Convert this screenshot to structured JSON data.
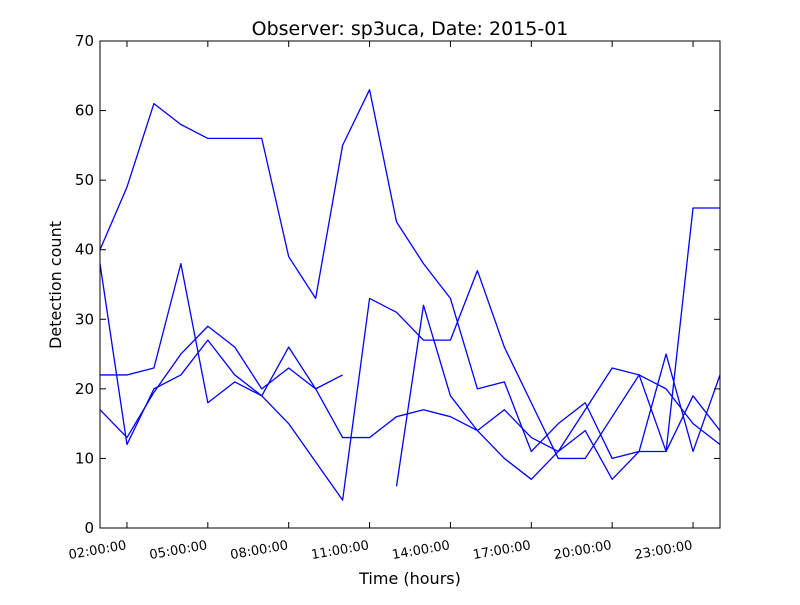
{
  "chart_data": {
    "type": "line",
    "title": "Observer: sp3uca, Date: 2015-01",
    "xlabel": "Time (hours)",
    "ylabel": "Detection count",
    "ylim": [
      0,
      70
    ],
    "xlim_hours": [
      1,
      24
    ],
    "y_ticks": [
      "0",
      "10",
      "20",
      "30",
      "40",
      "50",
      "60",
      "70"
    ],
    "x_ticks": [
      {
        "hour": 2,
        "label": "02:00:00"
      },
      {
        "hour": 5,
        "label": "05:00:00"
      },
      {
        "hour": 8,
        "label": "08:00:00"
      },
      {
        "hour": 11,
        "label": "11:00:00"
      },
      {
        "hour": 14,
        "label": "14:00:00"
      },
      {
        "hour": 17,
        "label": "17:00:00"
      },
      {
        "hour": 20,
        "label": "20:00:00"
      },
      {
        "hour": 23,
        "label": "23:00:00"
      }
    ],
    "grid": false,
    "line_color": "#0000ff",
    "series": [
      {
        "x": [
          1,
          2,
          3,
          4,
          5,
          6,
          7,
          8,
          9,
          10,
          11,
          12,
          13,
          14,
          15,
          16,
          17,
          18,
          19,
          20,
          21,
          22,
          23,
          24
        ],
        "values": [
          40,
          49,
          61,
          58,
          56,
          56,
          56,
          39,
          33,
          55,
          63,
          44,
          38,
          33,
          20,
          21,
          11,
          15,
          18,
          10,
          11,
          11,
          46,
          46
        ]
      },
      {
        "x": [
          1,
          2,
          3,
          4,
          5,
          6,
          7,
          8,
          9,
          10
        ],
        "values": [
          22,
          22,
          23,
          38,
          18,
          21,
          19,
          26,
          20,
          22
        ]
      },
      {
        "x": [
          1,
          2,
          3,
          4,
          5,
          6,
          7,
          8,
          9,
          10,
          11,
          12,
          13,
          14,
          15,
          16,
          17,
          18,
          19,
          20,
          21,
          22,
          23,
          24
        ],
        "values": [
          38,
          12,
          20,
          22,
          27,
          22,
          19,
          15,
          9.5,
          4,
          33,
          31,
          27,
          27,
          37,
          26,
          18,
          10,
          10,
          16,
          22,
          20,
          15,
          12
        ]
      },
      {
        "x": [
          1,
          2,
          3,
          4,
          5,
          6,
          7,
          8,
          9,
          10,
          11,
          12,
          13,
          14,
          15,
          16,
          17,
          18,
          19,
          20,
          21,
          22,
          23,
          24
        ],
        "values": [
          17,
          13,
          19.5,
          25,
          29,
          26,
          20,
          23,
          20,
          13,
          13,
          16,
          17,
          16,
          14,
          17,
          13,
          11,
          14,
          7,
          11,
          25,
          11,
          22
        ]
      },
      {
        "x": [
          12,
          13,
          14,
          15,
          16,
          17,
          18,
          19,
          20,
          21,
          22,
          23,
          24
        ],
        "values": [
          6,
          32,
          19,
          14,
          10,
          7,
          11,
          17,
          23,
          22,
          11,
          19,
          14
        ]
      }
    ]
  }
}
